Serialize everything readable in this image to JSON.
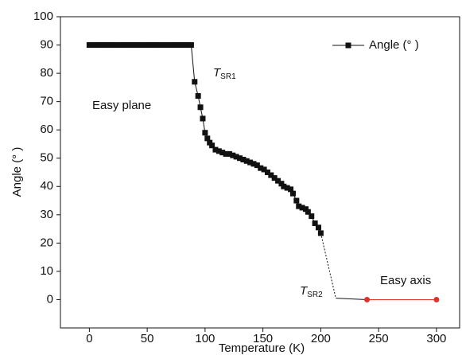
{
  "chart_data": {
    "type": "line",
    "x_label": "Temperature (K)",
    "y_label": "Angle (° )",
    "xlim": [
      -25,
      320
    ],
    "ylim": [
      -10,
      100
    ],
    "xticks": [
      0,
      50,
      100,
      150,
      200,
      250,
      300
    ],
    "yticks": [
      0,
      10,
      20,
      30,
      40,
      50,
      60,
      70,
      80,
      90,
      100
    ],
    "legend": "top-right",
    "series": [
      {
        "name": "Angle (° )",
        "color": "#111111",
        "marker": "square",
        "x": [
          0,
          2,
          4,
          6,
          8,
          10,
          12,
          14,
          16,
          18,
          20,
          22,
          24,
          26,
          28,
          30,
          32,
          34,
          36,
          38,
          40,
          42,
          44,
          46,
          48,
          50,
          52,
          54,
          56,
          58,
          60,
          62,
          64,
          66,
          68,
          70,
          72,
          74,
          76,
          78,
          80,
          82,
          84,
          86,
          88,
          91,
          94,
          96,
          98,
          100,
          102,
          104,
          106,
          109,
          112,
          115,
          118,
          121,
          124,
          127,
          130,
          133,
          136,
          139,
          142,
          145,
          148,
          151,
          154,
          157,
          160,
          163,
          166,
          168,
          171,
          174,
          176,
          179,
          181,
          184,
          187,
          189,
          192,
          195,
          198,
          200
        ],
        "values": [
          90,
          90,
          90,
          90,
          90,
          90,
          90,
          90,
          90,
          90,
          90,
          90,
          90,
          90,
          90,
          90,
          90,
          90,
          90,
          90,
          90,
          90,
          90,
          90,
          90,
          90,
          90,
          90,
          90,
          90,
          90,
          90,
          90,
          90,
          90,
          90,
          90,
          90,
          90,
          90,
          90,
          90,
          90,
          90,
          90,
          77,
          72,
          68,
          64,
          59,
          57,
          55.5,
          54.5,
          53,
          52.5,
          52,
          51.5,
          51.5,
          51,
          50.5,
          50,
          49.5,
          49,
          48.5,
          48,
          47.5,
          46.5,
          46,
          45,
          44,
          43,
          42,
          41,
          40,
          39.5,
          39,
          37.5,
          35,
          33,
          32.5,
          32,
          31,
          29.5,
          27,
          25.5,
          23.5
        ]
      },
      {
        "color": "#e0302a",
        "marker": "circle",
        "x": [
          240,
          300
        ],
        "values": [
          0,
          0
        ]
      }
    ],
    "connector": {
      "color": "#111111",
      "x": [
        200,
        213,
        240
      ],
      "values": [
        23.5,
        0.5,
        0
      ]
    },
    "annotations": [
      {
        "text": "Easy plane"
      },
      {
        "text": "T",
        "subscript": "SR1"
      },
      {
        "text": "T",
        "subscript": "SR2"
      },
      {
        "text": "Easy axis"
      }
    ]
  }
}
